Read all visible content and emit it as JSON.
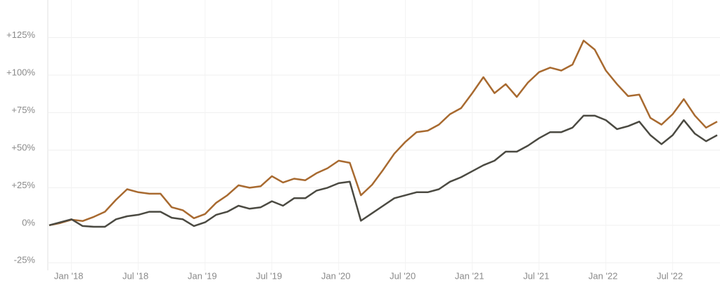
{
  "chart_data": {
    "type": "line",
    "categories": [
      null,
      null,
      "Jan '18",
      null,
      null,
      null,
      null,
      null,
      "Jul '18",
      null,
      null,
      null,
      null,
      null,
      "Jan '19",
      null,
      null,
      null,
      null,
      null,
      "Jul '19",
      null,
      null,
      null,
      null,
      null,
      "Jan '20",
      null,
      null,
      null,
      null,
      null,
      "Jul '20",
      null,
      null,
      null,
      null,
      null,
      "Jan '21",
      null,
      null,
      null,
      null,
      null,
      "Jul '21",
      null,
      null,
      null,
      null,
      null,
      "Jan '22",
      null,
      null,
      null,
      null,
      null,
      "Jul '22",
      null,
      null,
      null,
      null
    ],
    "series": [
      {
        "color": "#a86a30",
        "values": [
          0,
          1.5,
          3.7,
          2.8,
          5.6,
          9,
          17,
          24,
          22,
          21,
          21,
          12,
          10,
          4.7,
          7.5,
          15,
          20,
          26.6,
          25,
          26,
          32.7,
          28.5,
          31,
          30,
          34.6,
          38,
          43,
          41.6,
          20,
          27,
          37,
          47.7,
          55.6,
          62,
          63,
          67,
          74,
          78,
          88,
          98.6,
          88,
          94,
          85.5,
          95,
          102,
          105,
          103,
          107,
          123,
          117,
          103,
          94,
          86,
          87,
          71.5,
          67,
          74,
          84,
          73,
          65,
          69
        ]
      },
      {
        "color": "#4b4a42",
        "values": [
          0,
          2,
          4,
          -0.5,
          -1,
          -1,
          4,
          6,
          7,
          9,
          9,
          5,
          4,
          -0.5,
          2,
          7,
          9,
          13,
          11,
          12,
          16,
          13,
          18,
          18,
          23,
          25,
          28,
          29,
          3,
          8,
          13,
          18,
          20,
          22,
          22,
          24,
          29,
          32,
          36,
          40,
          43,
          49,
          49,
          53,
          58,
          62,
          62,
          65,
          73,
          73,
          70,
          64,
          66,
          69,
          60,
          54,
          60,
          70,
          61,
          56,
          60
        ]
      }
    ],
    "ylim": [
      -30,
      150
    ],
    "yticks": [
      {
        "value": -25,
        "label": "-25%"
      },
      {
        "value": 0,
        "label": "0%"
      },
      {
        "value": 25,
        "label": "+25%"
      },
      {
        "value": 50,
        "label": "+50%"
      },
      {
        "value": 75,
        "label": "+75%"
      },
      {
        "value": 100,
        "label": "+100%"
      },
      {
        "value": 125,
        "label": "+125%"
      }
    ],
    "grid": true
  }
}
